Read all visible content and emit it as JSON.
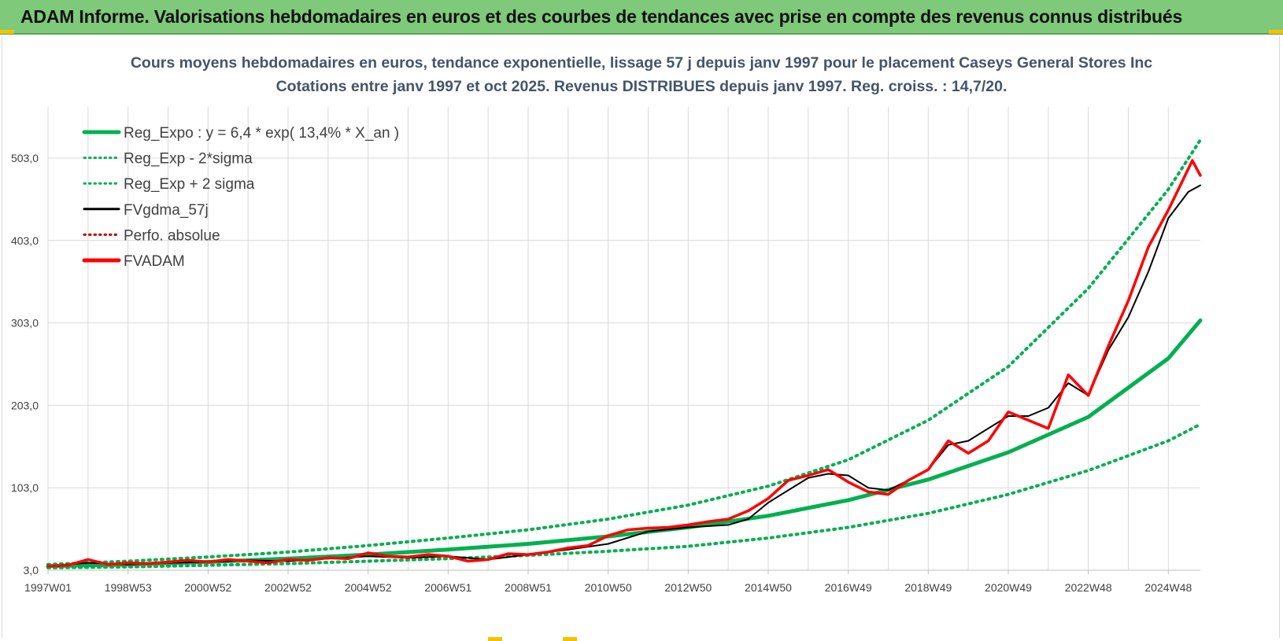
{
  "banner": {
    "title": "ADAM Informe. Valorisations hebdomadaires en euros et des courbes de tendances avec prise en compte des revenus connus distribués"
  },
  "colors": {
    "banner_bg": "#7fc97a",
    "trend_green": "#00b050",
    "smooth_black": "#000000",
    "price_red": "#ff0000",
    "grid": "#d9d9d9",
    "title": "#44546a"
  },
  "chart_data": {
    "type": "line",
    "title": "Cours moyens hebdomadaires en euros, tendance exponentielle, lissage 57 j depuis janv 1997  pour le placement Caseys General Stores Inc",
    "subtitle": "Cotations entre janv 1997 et oct 2025. Revenus DISTRIBUES depuis janv 1997.  Reg. croiss. : 14,7/20.",
    "xlabel": "",
    "ylabel": "",
    "x_range": [
      1997.0,
      2025.8
    ],
    "ylim": [
      3.0,
      565.0
    ],
    "y_ticks": [
      3.0,
      103.0,
      203.0,
      303.0,
      403.0,
      503.0
    ],
    "y_tick_labels": [
      "3,0",
      "103,0",
      "203,0",
      "303,0",
      "403,0",
      "503,0"
    ],
    "x_ticks": [
      {
        "label": "1997W01",
        "x": 1997.0
      },
      {
        "label": "1998W53",
        "x": 1999.0
      },
      {
        "label": "2000W52",
        "x": 2001.0
      },
      {
        "label": "2002W52",
        "x": 2003.0
      },
      {
        "label": "2004W52",
        "x": 2005.0
      },
      {
        "label": "2006W51",
        "x": 2007.0
      },
      {
        "label": "2008W51",
        "x": 2009.0
      },
      {
        "label": "2010W50",
        "x": 2011.0
      },
      {
        "label": "2012W50",
        "x": 2013.0
      },
      {
        "label": "2014W50",
        "x": 2015.0
      },
      {
        "label": "2016W49",
        "x": 2017.0
      },
      {
        "label": "2018W49",
        "x": 2019.0
      },
      {
        "label": "2020W49",
        "x": 2021.0
      },
      {
        "label": "2022W48",
        "x": 2023.0
      },
      {
        "label": "2024W48",
        "x": 2025.0
      }
    ],
    "legend": [
      {
        "label": "Reg_Expo : y = 6,4 * exp( 13,4% *  X_an )",
        "color": "#00b050",
        "style": "solid-thick"
      },
      {
        "label": "Reg_Exp - 2*sigma",
        "color": "#00b050",
        "style": "dotted"
      },
      {
        "label": "Reg_Exp + 2 sigma",
        "color": "#00b050",
        "style": "dotted"
      },
      {
        "label": "FVgdma_57j",
        "color": "#000000",
        "style": "solid"
      },
      {
        "label": "Perfo. absolue",
        "color": "#c00000",
        "style": "dotted"
      },
      {
        "label": "FVADAM",
        "color": "#ff0000",
        "style": "solid-thick"
      }
    ],
    "legend_position": "top-left",
    "series": [
      {
        "name": "Reg_Expo : y = 6,4 * exp( 13,4% *  X_an )",
        "x": [
          1997.0,
          1999.0,
          2001.0,
          2003.0,
          2005.0,
          2007.0,
          2009.0,
          2011.0,
          2013.0,
          2015.0,
          2017.0,
          2019.0,
          2021.0,
          2023.0,
          2025.0,
          2025.8
        ],
        "values": [
          8,
          10,
          13,
          17,
          22,
          28,
          35,
          44,
          55,
          69,
          88,
          113,
          146,
          189,
          260,
          306
        ]
      },
      {
        "name": "Reg_Exp - 2*sigma",
        "x": [
          1997.0,
          1999.0,
          2001.0,
          2003.0,
          2005.0,
          2007.0,
          2009.0,
          2011.0,
          2013.0,
          2015.0,
          2017.0,
          2019.0,
          2021.0,
          2023.0,
          2025.0,
          2025.8
        ],
        "values": [
          6,
          7,
          9,
          11,
          14,
          17,
          21,
          26,
          32,
          42,
          55,
          72,
          95,
          124,
          160,
          180
        ]
      },
      {
        "name": "Reg_Exp + 2 sigma",
        "x": [
          1997.0,
          1999.0,
          2001.0,
          2003.0,
          2005.0,
          2007.0,
          2009.0,
          2011.0,
          2013.0,
          2015.0,
          2017.0,
          2019.0,
          2021.0,
          2023.0,
          2025.0,
          2025.8
        ],
        "values": [
          10,
          14,
          19,
          25,
          33,
          42,
          52,
          65,
          82,
          105,
          137,
          185,
          250,
          345,
          465,
          525
        ]
      },
      {
        "name": "FVgdma_57j",
        "x": [
          1997.0,
          1998.0,
          1999.0,
          2000.0,
          2001.0,
          2002.0,
          2003.0,
          2004.0,
          2005.0,
          2006.0,
          2007.0,
          2008.0,
          2009.0,
          2010.0,
          2011.0,
          2012.0,
          2013.0,
          2014.0,
          2014.5,
          2015.0,
          2015.5,
          2016.0,
          2016.5,
          2017.0,
          2017.5,
          2018.0,
          2018.5,
          2019.0,
          2019.5,
          2020.0,
          2020.5,
          2021.0,
          2021.5,
          2022.0,
          2022.5,
          2023.0,
          2023.5,
          2024.0,
          2024.5,
          2025.0,
          2025.5,
          2025.8
        ],
        "values": [
          8,
          12,
          10,
          12,
          13,
          15,
          14,
          17,
          20,
          18,
          20,
          16,
          22,
          28,
          35,
          50,
          55,
          58,
          65,
          85,
          100,
          115,
          120,
          118,
          103,
          100,
          112,
          125,
          155,
          160,
          175,
          190,
          190,
          200,
          230,
          215,
          270,
          310,
          365,
          430,
          462,
          470
        ]
      },
      {
        "name": "FVADAM",
        "x": [
          1997.0,
          1997.5,
          1998.0,
          1998.5,
          1999.0,
          1999.5,
          2000.0,
          2000.5,
          2001.0,
          2001.5,
          2002.0,
          2002.5,
          2003.0,
          2003.5,
          2004.0,
          2004.5,
          2005.0,
          2005.5,
          2006.0,
          2006.5,
          2007.0,
          2007.5,
          2008.0,
          2008.5,
          2009.0,
          2009.5,
          2010.0,
          2010.5,
          2011.0,
          2011.5,
          2012.0,
          2012.5,
          2013.0,
          2013.5,
          2014.0,
          2014.5,
          2015.0,
          2015.5,
          2016.0,
          2016.5,
          2017.0,
          2017.5,
          2018.0,
          2018.5,
          2019.0,
          2019.5,
          2020.0,
          2020.5,
          2021.0,
          2021.5,
          2022.0,
          2022.5,
          2023.0,
          2023.5,
          2024.0,
          2024.5,
          2025.0,
          2025.3,
          2025.6,
          2025.8
        ],
        "values": [
          8,
          9,
          16,
          10,
          12,
          11,
          13,
          15,
          13,
          16,
          14,
          12,
          16,
          15,
          18,
          17,
          24,
          20,
          19,
          22,
          20,
          14,
          16,
          23,
          22,
          25,
          30,
          33,
          45,
          52,
          54,
          55,
          58,
          62,
          65,
          75,
          90,
          112,
          118,
          125,
          110,
          98,
          95,
          112,
          125,
          160,
          145,
          160,
          195,
          185,
          175,
          240,
          215,
          275,
          330,
          395,
          440,
          470,
          500,
          482
        ]
      }
    ]
  }
}
